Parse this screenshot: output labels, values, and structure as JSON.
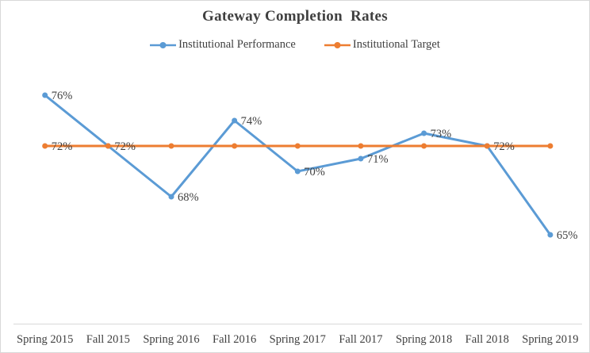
{
  "chart_data": {
    "type": "line",
    "title": "Gateway Completion  Rates",
    "categories": [
      "Spring 2015",
      "Fall 2015",
      "Spring 2016",
      "Fall 2016",
      "Spring 2017",
      "Fall 2017",
      "Spring 2018",
      "Fall 2018",
      "Spring 2019"
    ],
    "series": [
      {
        "name": "Institutional Performance",
        "color": "#5B9BD5",
        "values": [
          76,
          72,
          68,
          74,
          70,
          71,
          73,
          72,
          65
        ],
        "data_labels": [
          "76%",
          "72%",
          "68%",
          "74%",
          "70%",
          "71%",
          "73%",
          "72%",
          "65%"
        ]
      },
      {
        "name": "Institutional Target",
        "color": "#ED7D31",
        "values": [
          72,
          72,
          72,
          72,
          72,
          72,
          72,
          72,
          72
        ],
        "data_labels": [
          "72%",
          null,
          null,
          null,
          null,
          null,
          null,
          null,
          null
        ]
      }
    ],
    "legend_position": "top",
    "grid": false,
    "y_axis_visible": false,
    "ylim": [
      58,
      79
    ],
    "colors": {
      "text": "#404040",
      "data_label": "#404040",
      "axis_line": "#D9D9D9",
      "border": "#D9D9D9",
      "background": "#FFFFFF"
    }
  }
}
